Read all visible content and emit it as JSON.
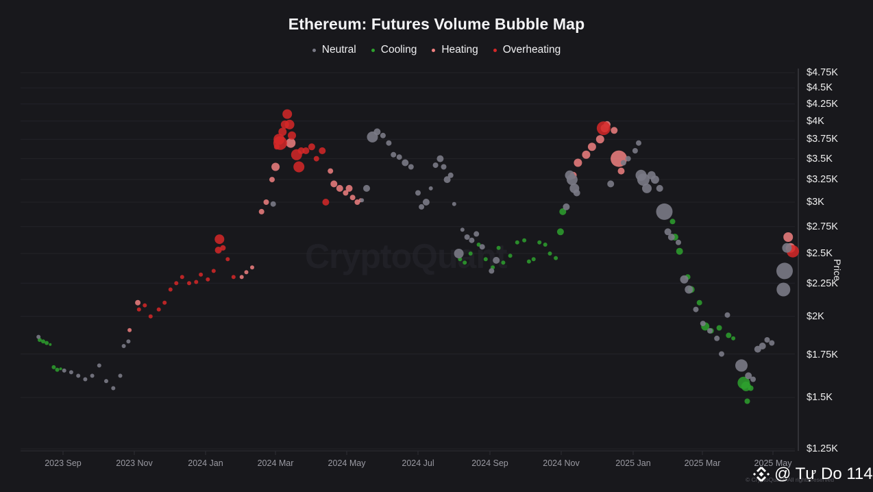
{
  "chart_data": {
    "type": "scatter",
    "title": "Ethereum: Futures Volume Bubble Map",
    "xlabel": "",
    "ylabel": "Price",
    "y_scale": "log",
    "ylim": [
      1250,
      4750
    ],
    "y_ticks": [
      "$4.75K",
      "$4.5K",
      "$4.25K",
      "$4K",
      "$3.75K",
      "$3.5K",
      "$3.25K",
      "$3K",
      "$2.75K",
      "$2.5K",
      "$2.25K",
      "$2K",
      "$1.75K",
      "$1.5K",
      "$1.25K"
    ],
    "y_tick_values": [
      4750,
      4500,
      4250,
      4000,
      3750,
      3500,
      3250,
      3000,
      2750,
      2500,
      2250,
      2000,
      1750,
      1500,
      1250
    ],
    "x_ticks": [
      "2023 Sep",
      "2023 Nov",
      "2024 Jan",
      "2024 Mar",
      "2024 May",
      "2024 Jul",
      "2024 Sep",
      "2024 Nov",
      "2025 Jan",
      "2025 Mar",
      "2025 May"
    ],
    "x_range": [
      "2023-08-10",
      "2025-05-20"
    ],
    "grid": true,
    "legend_position": "top-center",
    "legend": [
      {
        "name": "Neutral",
        "color": "#7a7a86"
      },
      {
        "name": "Cooling",
        "color": "#2ea12e"
      },
      {
        "name": "Heating",
        "color": "#f08080"
      },
      {
        "name": "Overheating",
        "color": "#d62828"
      }
    ],
    "series": [
      {
        "name": "Cooling",
        "color": "#2ea12e",
        "points": [
          [
            "2023-08-12",
            1840,
            3
          ],
          [
            "2023-08-15",
            1830,
            3
          ],
          [
            "2023-08-18",
            1820,
            3
          ],
          [
            "2023-08-21",
            1810,
            2
          ],
          [
            "2023-08-24",
            1670,
            3
          ],
          [
            "2023-08-27",
            1655,
            3
          ],
          [
            "2023-08-30",
            1660,
            2
          ],
          [
            "2024-08-06",
            2450,
            3
          ],
          [
            "2024-08-10",
            2420,
            3
          ],
          [
            "2024-08-15",
            2500,
            3
          ],
          [
            "2024-08-22",
            2580,
            3
          ],
          [
            "2024-08-28",
            2450,
            3
          ],
          [
            "2024-09-03",
            2380,
            3
          ],
          [
            "2024-09-08",
            2550,
            3
          ],
          [
            "2024-09-12",
            2420,
            3
          ],
          [
            "2024-09-18",
            2480,
            3
          ],
          [
            "2024-09-24",
            2600,
            3
          ],
          [
            "2024-09-30",
            2620,
            3
          ],
          [
            "2024-10-04",
            2430,
            3
          ],
          [
            "2024-10-08",
            2450,
            3
          ],
          [
            "2024-10-13",
            2600,
            3
          ],
          [
            "2024-10-18",
            2580,
            3
          ],
          [
            "2024-10-22",
            2500,
            3
          ],
          [
            "2024-10-27",
            2460,
            3
          ],
          [
            "2024-10-31",
            2700,
            5
          ],
          [
            "2024-11-02",
            2900,
            5
          ],
          [
            "2025-02-04",
            2800,
            4
          ],
          [
            "2025-02-06",
            2650,
            5
          ],
          [
            "2025-02-10",
            2520,
            5
          ],
          [
            "2025-02-17",
            2300,
            4
          ],
          [
            "2025-02-20",
            2200,
            5
          ],
          [
            "2025-02-27",
            2100,
            4
          ],
          [
            "2025-03-04",
            1930,
            6
          ],
          [
            "2025-03-09",
            1900,
            4
          ],
          [
            "2025-03-16",
            1920,
            4
          ],
          [
            "2025-03-24",
            1870,
            4
          ],
          [
            "2025-03-28",
            1850,
            3
          ],
          [
            "2025-04-06",
            1580,
            9
          ],
          [
            "2025-04-08",
            1560,
            7
          ],
          [
            "2025-04-09",
            1480,
            4
          ],
          [
            "2025-04-12",
            1550,
            4
          ]
        ]
      },
      {
        "name": "Heating",
        "color": "#f08080",
        "points": [
          [
            "2023-10-28",
            1905,
            3
          ],
          [
            "2023-11-04",
            2100,
            4
          ],
          [
            "2024-02-01",
            2300,
            3
          ],
          [
            "2024-02-05",
            2340,
            3
          ],
          [
            "2024-02-10",
            2380,
            3
          ],
          [
            "2024-02-18",
            2900,
            4
          ],
          [
            "2024-02-22",
            3000,
            4
          ],
          [
            "2024-02-27",
            3250,
            4
          ],
          [
            "2024-03-01",
            3400,
            6
          ],
          [
            "2024-03-14",
            3700,
            7
          ],
          [
            "2024-04-17",
            3350,
            4
          ],
          [
            "2024-04-20",
            3200,
            5
          ],
          [
            "2024-04-25",
            3150,
            5
          ],
          [
            "2024-04-30",
            3100,
            4
          ],
          [
            "2024-05-03",
            3150,
            5
          ],
          [
            "2024-05-06",
            3050,
            4
          ],
          [
            "2024-05-10",
            3000,
            4
          ],
          [
            "2024-05-13",
            3020,
            3
          ],
          [
            "2024-11-11",
            3300,
            5
          ],
          [
            "2024-11-15",
            3450,
            6
          ],
          [
            "2024-11-22",
            3550,
            6
          ],
          [
            "2024-11-27",
            3650,
            6
          ],
          [
            "2024-12-04",
            3750,
            6
          ],
          [
            "2024-12-08",
            3900,
            6
          ],
          [
            "2024-12-10",
            3950,
            5
          ],
          [
            "2024-12-16",
            3870,
            5
          ],
          [
            "2024-12-20",
            3500,
            12
          ],
          [
            "2024-12-22",
            3350,
            5
          ],
          [
            "2025-05-14",
            2650,
            7
          ],
          [
            "2025-05-16",
            2550,
            7
          ]
        ]
      },
      {
        "name": "Overheating",
        "color": "#d62828",
        "points": [
          [
            "2023-11-05",
            2050,
            3
          ],
          [
            "2023-11-10",
            2080,
            3
          ],
          [
            "2023-11-15",
            2000,
            3
          ],
          [
            "2023-11-22",
            2050,
            3
          ],
          [
            "2023-11-27",
            2100,
            3
          ],
          [
            "2023-12-02",
            2200,
            3
          ],
          [
            "2023-12-07",
            2250,
            3
          ],
          [
            "2023-12-12",
            2300,
            3
          ],
          [
            "2023-12-18",
            2250,
            3
          ],
          [
            "2023-12-24",
            2260,
            3
          ],
          [
            "2023-12-28",
            2320,
            3
          ],
          [
            "2024-01-03",
            2280,
            3
          ],
          [
            "2024-01-08",
            2350,
            3
          ],
          [
            "2024-01-12",
            2530,
            5
          ],
          [
            "2024-01-13",
            2630,
            7
          ],
          [
            "2024-01-16",
            2550,
            4
          ],
          [
            "2024-01-20",
            2450,
            3
          ],
          [
            "2024-01-25",
            2300,
            3
          ],
          [
            "2024-03-02",
            3650,
            4
          ],
          [
            "2024-03-04",
            3750,
            8
          ],
          [
            "2024-03-05",
            3700,
            10
          ],
          [
            "2024-03-07",
            3850,
            6
          ],
          [
            "2024-03-09",
            3950,
            6
          ],
          [
            "2024-03-11",
            4100,
            7
          ],
          [
            "2024-03-13",
            3950,
            7
          ],
          [
            "2024-03-15",
            3800,
            6
          ],
          [
            "2024-03-19",
            3550,
            8
          ],
          [
            "2024-03-21",
            3400,
            8
          ],
          [
            "2024-03-23",
            3600,
            5
          ],
          [
            "2024-03-27",
            3600,
            5
          ],
          [
            "2024-04-01",
            3650,
            5
          ],
          [
            "2024-04-05",
            3500,
            4
          ],
          [
            "2024-04-10",
            3600,
            5
          ],
          [
            "2024-04-13",
            3000,
            5
          ],
          [
            "2024-12-07",
            3900,
            10
          ],
          [
            "2025-05-18",
            2520,
            9
          ]
        ]
      },
      {
        "name": "Neutral",
        "color": "#7a7a86",
        "points": [
          [
            "2023-08-11",
            1860,
            3
          ],
          [
            "2023-09-02",
            1650,
            3
          ],
          [
            "2023-09-08",
            1640,
            3
          ],
          [
            "2023-09-14",
            1620,
            3
          ],
          [
            "2023-09-20",
            1600,
            3
          ],
          [
            "2023-09-26",
            1620,
            3
          ],
          [
            "2023-10-02",
            1680,
            3
          ],
          [
            "2023-10-08",
            1590,
            3
          ],
          [
            "2023-10-14",
            1550,
            3
          ],
          [
            "2023-10-20",
            1620,
            3
          ],
          [
            "2023-10-23",
            1800,
            3
          ],
          [
            "2023-10-27",
            1830,
            3
          ],
          [
            "2024-02-28",
            2980,
            4
          ],
          [
            "2024-05-14",
            3020,
            3
          ],
          [
            "2024-05-18",
            3150,
            5
          ],
          [
            "2024-05-23",
            3780,
            8
          ],
          [
            "2024-05-27",
            3850,
            5
          ],
          [
            "2024-06-01",
            3800,
            4
          ],
          [
            "2024-06-06",
            3700,
            4
          ],
          [
            "2024-06-10",
            3550,
            4
          ],
          [
            "2024-06-15",
            3520,
            4
          ],
          [
            "2024-06-20",
            3450,
            5
          ],
          [
            "2024-06-25",
            3400,
            4
          ],
          [
            "2024-07-01",
            3100,
            4
          ],
          [
            "2024-07-04",
            2950,
            4
          ],
          [
            "2024-07-08",
            3000,
            5
          ],
          [
            "2024-07-12",
            3150,
            3
          ],
          [
            "2024-07-16",
            3420,
            4
          ],
          [
            "2024-07-20",
            3500,
            5
          ],
          [
            "2024-07-23",
            3400,
            4
          ],
          [
            "2024-07-26",
            3250,
            5
          ],
          [
            "2024-07-29",
            3300,
            4
          ],
          [
            "2024-08-01",
            2980,
            3
          ],
          [
            "2024-08-05",
            2500,
            7
          ],
          [
            "2024-08-08",
            2720,
            3
          ],
          [
            "2024-08-12",
            2650,
            4
          ],
          [
            "2024-08-16",
            2620,
            4
          ],
          [
            "2024-08-20",
            2680,
            4
          ],
          [
            "2024-08-25",
            2560,
            4
          ],
          [
            "2024-09-02",
            2350,
            4
          ],
          [
            "2024-09-06",
            2440,
            5
          ],
          [
            "2024-11-05",
            2950,
            5
          ],
          [
            "2024-11-08",
            3300,
            7
          ],
          [
            "2024-11-10",
            3250,
            8
          ],
          [
            "2024-11-12",
            3150,
            7
          ],
          [
            "2024-11-14",
            3100,
            5
          ],
          [
            "2024-12-13",
            3200,
            5
          ],
          [
            "2024-12-24",
            3450,
            4
          ],
          [
            "2024-12-28",
            3500,
            4
          ],
          [
            "2025-01-03",
            3600,
            4
          ],
          [
            "2025-01-06",
            3700,
            4
          ],
          [
            "2025-01-08",
            3300,
            8
          ],
          [
            "2025-01-10",
            3250,
            9
          ],
          [
            "2025-01-13",
            3150,
            7
          ],
          [
            "2025-01-17",
            3300,
            6
          ],
          [
            "2025-01-20",
            3250,
            6
          ],
          [
            "2025-01-24",
            3150,
            5
          ],
          [
            "2025-01-28",
            2900,
            12
          ],
          [
            "2025-01-31",
            2700,
            5
          ],
          [
            "2025-02-03",
            2650,
            5
          ],
          [
            "2025-02-09",
            2600,
            4
          ],
          [
            "2025-02-14",
            2280,
            6
          ],
          [
            "2025-02-18",
            2200,
            6
          ],
          [
            "2025-02-24",
            2050,
            4
          ],
          [
            "2025-03-02",
            1950,
            4
          ],
          [
            "2025-03-08",
            1900,
            4
          ],
          [
            "2025-03-14",
            1850,
            4
          ],
          [
            "2025-03-18",
            1750,
            4
          ],
          [
            "2025-03-23",
            2010,
            4
          ],
          [
            "2025-04-04",
            1680,
            9
          ],
          [
            "2025-04-10",
            1620,
            5
          ],
          [
            "2025-04-14",
            1600,
            4
          ],
          [
            "2025-04-18",
            1780,
            5
          ],
          [
            "2025-04-22",
            1800,
            5
          ],
          [
            "2025-04-26",
            1840,
            4
          ],
          [
            "2025-04-30",
            1820,
            4
          ],
          [
            "2025-05-10",
            2200,
            10
          ],
          [
            "2025-05-11",
            2350,
            12
          ],
          [
            "2025-05-13",
            2550,
            7
          ]
        ]
      }
    ]
  },
  "header": {
    "title": "Ethereum: Futures Volume Bubble Map"
  },
  "legend": {
    "items": [
      {
        "label": "Neutral",
        "color": "#7a7a86"
      },
      {
        "label": "Cooling",
        "color": "#2ea12e"
      },
      {
        "label": "Heating",
        "color": "#f08080"
      },
      {
        "label": "Overheating",
        "color": "#d62828"
      }
    ]
  },
  "axes": {
    "y_label": "Price",
    "y_ticks": [
      "$4.75K",
      "$4.5K",
      "$4.25K",
      "$4K",
      "$3.75K",
      "$3.5K",
      "$3.25K",
      "$3K",
      "$2.75K",
      "$2.5K",
      "$2.25K",
      "$2K",
      "$1.75K",
      "$1.5K",
      "$1.25K"
    ],
    "x_ticks": [
      "2023 Sep",
      "2023 Nov",
      "2024 Jan",
      "2024 Mar",
      "2024 May",
      "2024 Jul",
      "2024 Sep",
      "2024 Nov",
      "2025 Jan",
      "2025 Mar",
      "2025 May"
    ]
  },
  "footer": {
    "watermark": "CryptoQuant",
    "copyright": "© CryptoQuant. All rights reserved",
    "overlay_handle": "@ Tự Do 114"
  }
}
